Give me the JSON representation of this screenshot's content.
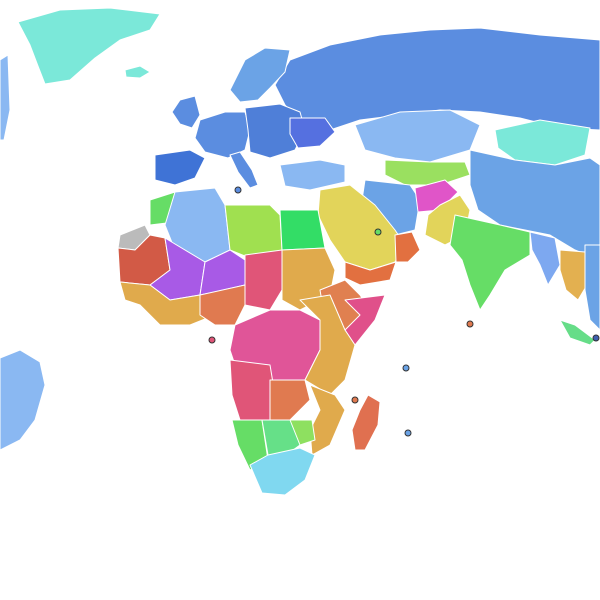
{
  "map": {
    "background": "#ffffff",
    "regions": [
      {
        "name": "greenland",
        "color": "#7be8d9"
      },
      {
        "name": "iceland",
        "color": "#7be8d9"
      },
      {
        "name": "north-america-east",
        "color": "#8ab8f2"
      },
      {
        "name": "russia",
        "color": "#5b8de0"
      },
      {
        "name": "scandinavia",
        "color": "#6ba3e6"
      },
      {
        "name": "western-europe",
        "color": "#5b8de0"
      },
      {
        "name": "central-europe",
        "color": "#4f7fd8"
      },
      {
        "name": "ukraine-belarus",
        "color": "#5570e0"
      },
      {
        "name": "iberia",
        "color": "#3f73d6"
      },
      {
        "name": "uk-ireland",
        "color": "#5b8de0"
      },
      {
        "name": "italy",
        "color": "#5b8de0"
      },
      {
        "name": "turkey",
        "color": "#8ab8f2"
      },
      {
        "name": "kazakhstan",
        "color": "#8ab8f2"
      },
      {
        "name": "mongolia",
        "color": "#7be8d9"
      },
      {
        "name": "china",
        "color": "#6ba3e6"
      },
      {
        "name": "central-asia",
        "color": "#9ae060"
      },
      {
        "name": "iran",
        "color": "#6ba3e6"
      },
      {
        "name": "afghanistan",
        "color": "#e055c8"
      },
      {
        "name": "pakistan",
        "color": "#e2d45a"
      },
      {
        "name": "india",
        "color": "#66dd66"
      },
      {
        "name": "southeast-asia",
        "color": "#6ba3e6"
      },
      {
        "name": "myanmar",
        "color": "#7da8f0"
      },
      {
        "name": "thailand",
        "color": "#e3b050"
      },
      {
        "name": "arabia",
        "color": "#e2d45a"
      },
      {
        "name": "yemen",
        "color": "#e27040"
      },
      {
        "name": "oman",
        "color": "#e27040"
      },
      {
        "name": "egypt",
        "color": "#33dd66"
      },
      {
        "name": "libya",
        "color": "#a0e050"
      },
      {
        "name": "algeria",
        "color": "#8ab8f2"
      },
      {
        "name": "morocco",
        "color": "#66dd66"
      },
      {
        "name": "western-sahara",
        "color": "#bbbbbb"
      },
      {
        "name": "mauritania",
        "color": "#d25a46"
      },
      {
        "name": "mali",
        "color": "#a85ae6"
      },
      {
        "name": "niger",
        "color": "#a85ae6"
      },
      {
        "name": "chad",
        "color": "#e05578"
      },
      {
        "name": "sudan",
        "color": "#e0aa4c"
      },
      {
        "name": "ethiopia",
        "color": "#e08050"
      },
      {
        "name": "somalia",
        "color": "#e0508a"
      },
      {
        "name": "nigeria",
        "color": "#e07a50"
      },
      {
        "name": "west-africa-coast",
        "color": "#e0aa4c"
      },
      {
        "name": "central-africa",
        "color": "#e05598"
      },
      {
        "name": "east-africa",
        "color": "#e0aa4c"
      },
      {
        "name": "angola",
        "color": "#e05578"
      },
      {
        "name": "zambia",
        "color": "#e07a50"
      },
      {
        "name": "namibia",
        "color": "#66dd66"
      },
      {
        "name": "botswana",
        "color": "#66e088"
      },
      {
        "name": "mozambique",
        "color": "#e0aa4c"
      },
      {
        "name": "zimbabwe",
        "color": "#8ee060"
      },
      {
        "name": "south-africa",
        "color": "#80d8f0"
      },
      {
        "name": "madagascar",
        "color": "#e07050"
      },
      {
        "name": "south-america",
        "color": "#8ab8f2"
      },
      {
        "name": "sumatra",
        "color": "#66dd88"
      }
    ],
    "markers": [
      {
        "name": "malta-marker",
        "color": "#5b8de0"
      },
      {
        "name": "bahrain-marker",
        "color": "#66dd66"
      },
      {
        "name": "sao-tome-marker",
        "color": "#e05578"
      },
      {
        "name": "maldives-marker",
        "color": "#e07a50"
      },
      {
        "name": "seychelles-marker",
        "color": "#6ba3e6"
      },
      {
        "name": "mauritius-marker",
        "color": "#6ba3e6"
      },
      {
        "name": "comoros-marker",
        "color": "#e07a50"
      },
      {
        "name": "singapore-marker",
        "color": "#3f5fb0"
      }
    ]
  }
}
